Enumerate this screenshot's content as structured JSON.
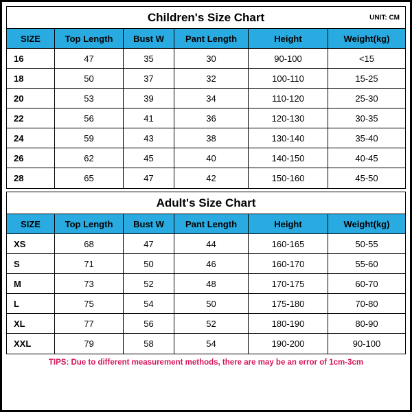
{
  "children": {
    "title": "Children's Size Chart",
    "unit": "UNIT: CM",
    "columns": [
      "SIZE",
      "Top Length",
      "Bust W",
      "Pant Length",
      "Height",
      "Weight(kg)"
    ],
    "rows": [
      [
        "16",
        "47",
        "35",
        "30",
        "90-100",
        "<15"
      ],
      [
        "18",
        "50",
        "37",
        "32",
        "100-110",
        "15-25"
      ],
      [
        "20",
        "53",
        "39",
        "34",
        "110-120",
        "25-30"
      ],
      [
        "22",
        "56",
        "41",
        "36",
        "120-130",
        "30-35"
      ],
      [
        "24",
        "59",
        "43",
        "38",
        "130-140",
        "35-40"
      ],
      [
        "26",
        "62",
        "45",
        "40",
        "140-150",
        "40-45"
      ],
      [
        "28",
        "65",
        "47",
        "42",
        "150-160",
        "45-50"
      ]
    ]
  },
  "adult": {
    "title": "Adult's Size Chart",
    "columns": [
      "SIZE",
      "Top Length",
      "Bust W",
      "Pant Length",
      "Height",
      "Weight(kg)"
    ],
    "rows": [
      [
        "XS",
        "68",
        "47",
        "44",
        "160-165",
        "50-55"
      ],
      [
        "S",
        "71",
        "50",
        "46",
        "160-170",
        "55-60"
      ],
      [
        "M",
        "73",
        "52",
        "48",
        "170-175",
        "60-70"
      ],
      [
        "L",
        "75",
        "54",
        "50",
        "175-180",
        "70-80"
      ],
      [
        "XL",
        "77",
        "56",
        "52",
        "180-190",
        "80-90"
      ],
      [
        "XXL",
        "79",
        "58",
        "54",
        "190-200",
        "90-100"
      ]
    ]
  },
  "tips": "TIPS: Due to different measurement methods, there are may be an error of 1cm-3cm",
  "colors": {
    "header_bg": "#29abe2",
    "border": "#000000",
    "tips_color": "#d4145a",
    "background": "#ffffff"
  }
}
